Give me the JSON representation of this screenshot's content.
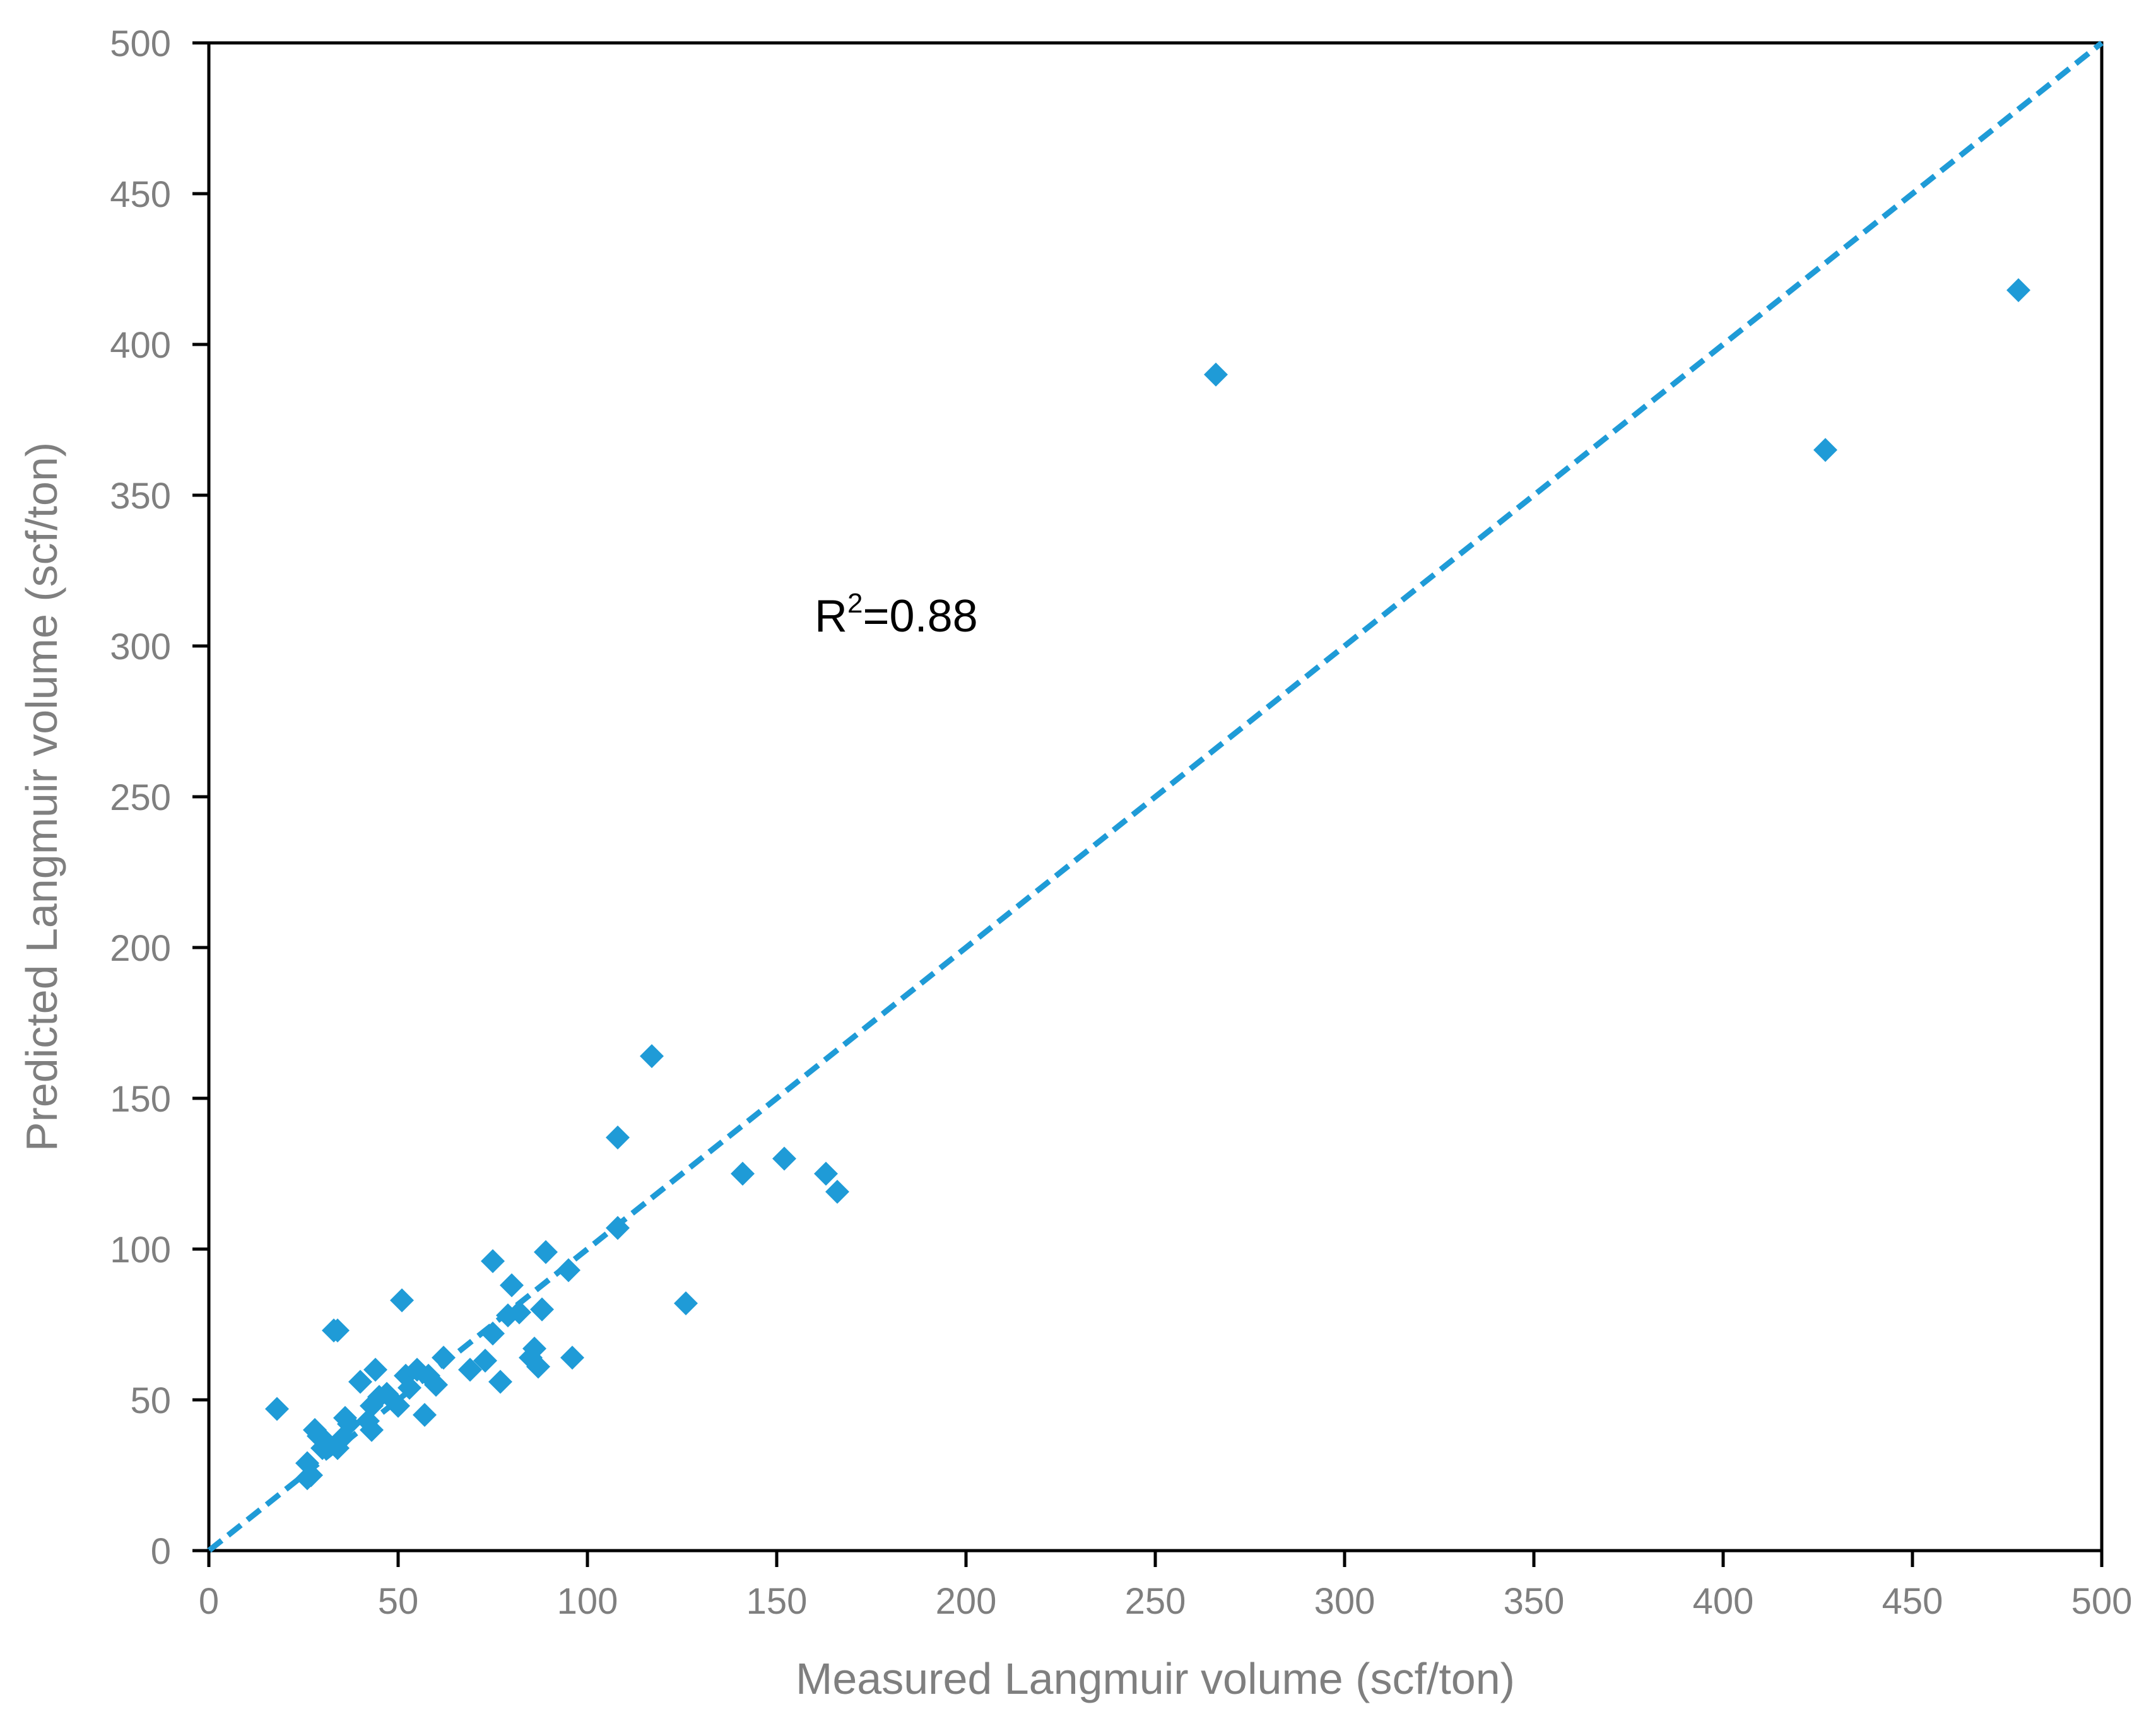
{
  "chart_data": {
    "type": "scatter",
    "xlabel": "Measured Langmuir volume (scf/ton)",
    "ylabel": "Predicted Langmuir volume (scf/ton)",
    "xlim": [
      0,
      500
    ],
    "ylim": [
      0,
      500
    ],
    "x_ticks": [
      "0",
      "50",
      "100",
      "150",
      "200",
      "250",
      "300",
      "350",
      "400",
      "450",
      "500"
    ],
    "y_ticks": [
      "0",
      "50",
      "100",
      "150",
      "200",
      "250",
      "300",
      "350",
      "400",
      "450",
      "500"
    ],
    "grid": false,
    "marker": "diamond",
    "marker_color": "#1f9bd7",
    "reference_line": {
      "style": "dashed",
      "color": "#1f9bd7",
      "from": [
        0,
        0
      ],
      "to": [
        500,
        500
      ]
    },
    "annotation": {
      "base": "R",
      "superscript": "2",
      "value": "=0.88",
      "at": [
        160,
        310
      ]
    },
    "points": [
      [
        18,
        47
      ],
      [
        26,
        29
      ],
      [
        26,
        24
      ],
      [
        27,
        25
      ],
      [
        28,
        40
      ],
      [
        29,
        38
      ],
      [
        30,
        34
      ],
      [
        31,
        36
      ],
      [
        33,
        73
      ],
      [
        34,
        73
      ],
      [
        34,
        34
      ],
      [
        35,
        37
      ],
      [
        36,
        44
      ],
      [
        37,
        42
      ],
      [
        40,
        56
      ],
      [
        42,
        43
      ],
      [
        43,
        48
      ],
      [
        43,
        40
      ],
      [
        44,
        60
      ],
      [
        45,
        51
      ],
      [
        47,
        52
      ],
      [
        50,
        48
      ],
      [
        51,
        83
      ],
      [
        52,
        58
      ],
      [
        53,
        54
      ],
      [
        55,
        60
      ],
      [
        57,
        45
      ],
      [
        58,
        58
      ],
      [
        60,
        55
      ],
      [
        62,
        64
      ],
      [
        69,
        60
      ],
      [
        73,
        63
      ],
      [
        75,
        96
      ],
      [
        75,
        72
      ],
      [
        77,
        56
      ],
      [
        79,
        78
      ],
      [
        80,
        88
      ],
      [
        82,
        79
      ],
      [
        85,
        64
      ],
      [
        86,
        67
      ],
      [
        87,
        61
      ],
      [
        88,
        80
      ],
      [
        89,
        99
      ],
      [
        95,
        93
      ],
      [
        96,
        64
      ],
      [
        108,
        137
      ],
      [
        108,
        107
      ],
      [
        117,
        164
      ],
      [
        126,
        82
      ],
      [
        141,
        125
      ],
      [
        152,
        130
      ],
      [
        163,
        125
      ],
      [
        166,
        119
      ],
      [
        266,
        390
      ],
      [
        427,
        365
      ],
      [
        478,
        418
      ]
    ]
  }
}
